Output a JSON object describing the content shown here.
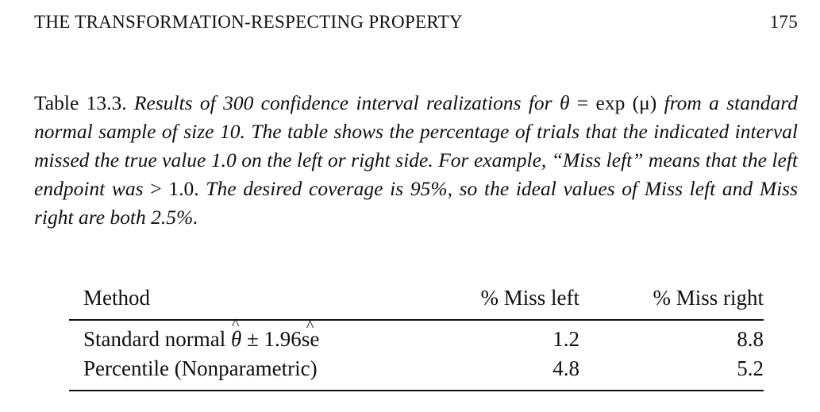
{
  "header": {
    "running_title": "THE TRANSFORMATION-RESPECTING PROPERTY",
    "page_number": "175"
  },
  "caption": {
    "label": "Table 13.3.",
    "p1": "Results of 300 confidence interval realizations for",
    "theta": "θ",
    "eq": " = ",
    "expr": "exp (μ)",
    "p2": "from a standard normal sample of size 10. The table shows the percentage of trials that the indicated interval missed the true value 1.0 on the left or right side. For example, “Miss left” means that the left endpoint was",
    "gt": "> 1.0.",
    "p3": "The desired coverage is 95%, so the ideal values of Miss left and Miss right are both 2.5%."
  },
  "table": {
    "headers": [
      "Method",
      "% Miss left",
      "% Miss right"
    ],
    "rows": [
      {
        "method_prefix": "Standard normal",
        "theta": "θ",
        "pm": "± 1.96",
        "se": "se",
        "left": "1.2",
        "right": "8.8"
      },
      {
        "method": "Percentile (Nonparametric)",
        "left": "4.8",
        "right": "5.2"
      }
    ]
  }
}
